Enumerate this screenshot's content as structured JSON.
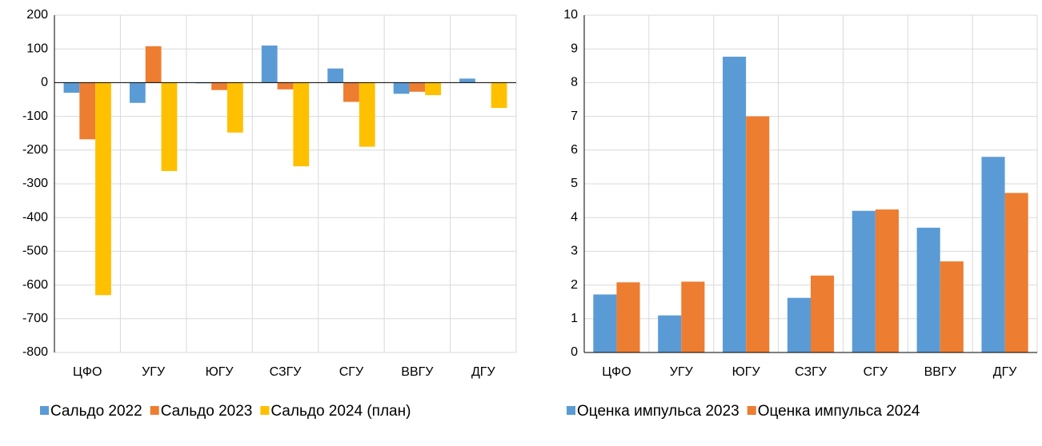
{
  "chart_data": [
    {
      "type": "bar",
      "categories": [
        "ЦФО",
        "УГУ",
        "ЮГУ",
        "СЗГУ",
        "СГУ",
        "ВВГУ",
        "ДГУ"
      ],
      "series": [
        {
          "name": "Сальдо 2022",
          "color": "#5b9bd5",
          "values": [
            -30,
            -60,
            -2,
            110,
            42,
            -33,
            12
          ]
        },
        {
          "name": "Сальдо 2023",
          "color": "#ed7d31",
          "values": [
            -168,
            108,
            -22,
            -20,
            -57,
            -27,
            0
          ]
        },
        {
          "name": "Сальдо 2024 (план)",
          "color": "#ffc000",
          "values": [
            -630,
            -262,
            -148,
            -248,
            -190,
            -37,
            -75
          ]
        }
      ],
      "ylim": [
        -800,
        200
      ],
      "yticks": [
        -800,
        -700,
        -600,
        -500,
        -400,
        -300,
        -200,
        -100,
        0,
        100,
        200
      ],
      "grid": true
    },
    {
      "type": "bar",
      "categories": [
        "ЦФО",
        "УГУ",
        "ЮГУ",
        "СЗГУ",
        "СГУ",
        "ВВГУ",
        "ДГУ"
      ],
      "series": [
        {
          "name": "Оценка импульса 2023",
          "color": "#5b9bd5",
          "values": [
            1.72,
            1.1,
            8.77,
            1.62,
            4.2,
            3.7,
            5.8
          ]
        },
        {
          "name": "Оценка импульса 2024",
          "color": "#ed7d31",
          "values": [
            2.08,
            2.1,
            7.0,
            2.28,
            4.24,
            2.7,
            4.73
          ]
        }
      ],
      "ylim": [
        0,
        10
      ],
      "yticks": [
        0,
        1,
        2,
        3,
        4,
        5,
        6,
        7,
        8,
        9,
        10
      ],
      "grid": true
    }
  ]
}
